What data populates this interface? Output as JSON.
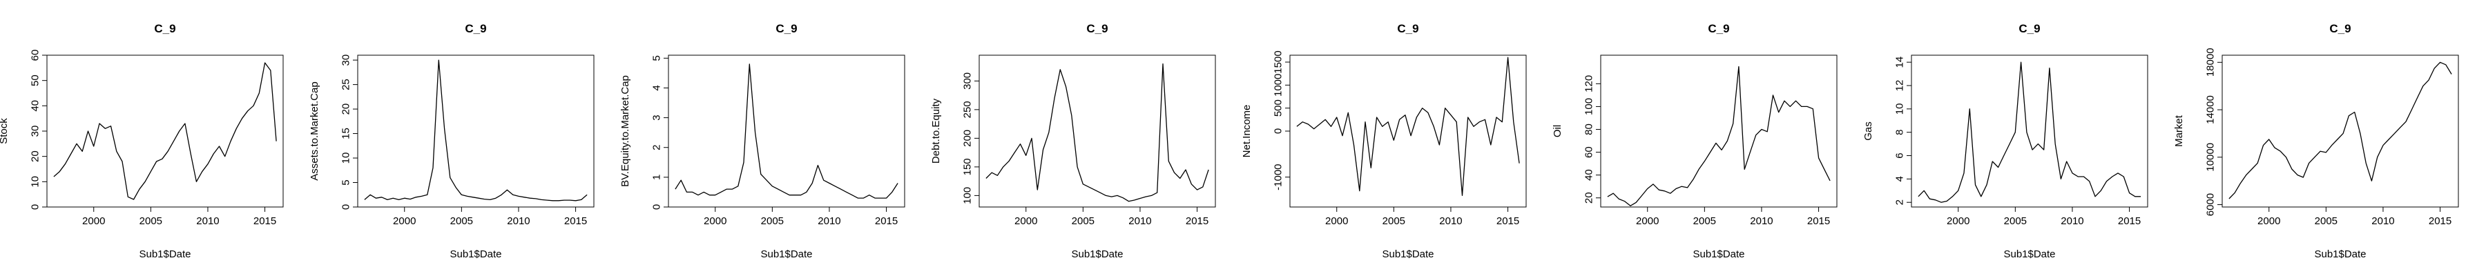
{
  "chart_data": [
    {
      "type": "line",
      "title": "C_9",
      "xlabel": "Sub1$Date",
      "ylabel": "Stock",
      "xlim": [
        1995.9,
        2016.6
      ],
      "ylim": [
        0,
        60
      ],
      "xticks": [
        2000,
        2005,
        2010,
        2015
      ],
      "yticks": [
        0,
        10,
        20,
        30,
        40,
        50,
        60
      ],
      "x": [
        1996.5,
        1997,
        1997.5,
        1998,
        1998.5,
        1999,
        1999.5,
        2000,
        2000.5,
        2001,
        2001.5,
        2002,
        2002.5,
        2003,
        2003.5,
        2004,
        2004.5,
        2005,
        2005.5,
        2006,
        2006.5,
        2007,
        2007.5,
        2008,
        2008.5,
        2009,
        2009.5,
        2010,
        2010.5,
        2011,
        2011.5,
        2012,
        2012.5,
        2013,
        2013.5,
        2014,
        2014.5,
        2015,
        2015.5,
        2016
      ],
      "values": [
        12,
        14,
        17,
        21,
        25,
        22,
        30,
        24,
        33,
        31,
        32,
        22,
        18,
        4,
        3,
        7,
        10,
        14,
        18,
        19,
        22,
        26,
        30,
        33,
        21,
        10,
        14,
        17,
        21,
        24,
        20,
        26,
        31,
        35,
        38,
        40,
        45,
        57,
        54,
        26
      ]
    },
    {
      "type": "line",
      "title": "C_9",
      "xlabel": "Sub1$Date",
      "ylabel": "Assets.to.Market.Cap",
      "xlim": [
        1995.9,
        2016.6
      ],
      "ylim": [
        0,
        31
      ],
      "xticks": [
        2000,
        2005,
        2010,
        2015
      ],
      "yticks": [
        0,
        5,
        10,
        15,
        20,
        25,
        30
      ],
      "x": [
        1996.5,
        1997,
        1997.5,
        1998,
        1998.5,
        1999,
        1999.5,
        2000,
        2000.5,
        2001,
        2001.5,
        2002,
        2002.5,
        2003,
        2003.5,
        2004,
        2004.5,
        2005,
        2005.5,
        2006,
        2006.5,
        2007,
        2007.5,
        2008,
        2008.5,
        2009,
        2009.5,
        2010,
        2010.5,
        2011,
        2011.5,
        2012,
        2012.5,
        2013,
        2013.5,
        2014,
        2014.5,
        2015,
        2015.5,
        2016
      ],
      "values": [
        1.5,
        2.5,
        1.8,
        2,
        1.5,
        1.8,
        1.5,
        1.8,
        1.6,
        2,
        2.2,
        2.5,
        8,
        30,
        16,
        6,
        4,
        2.5,
        2.2,
        2,
        1.8,
        1.6,
        1.5,
        1.8,
        2.5,
        3.5,
        2.5,
        2.2,
        2,
        1.8,
        1.7,
        1.5,
        1.4,
        1.3,
        1.3,
        1.4,
        1.4,
        1.3,
        1.5,
        2.5
      ]
    },
    {
      "type": "line",
      "title": "C_9",
      "xlabel": "Sub1$Date",
      "ylabel": "BV.Equity.to.Market.Cap",
      "xlim": [
        1995.9,
        2016.6
      ],
      "ylim": [
        0,
        5.1
      ],
      "xticks": [
        2000,
        2005,
        2010,
        2015
      ],
      "yticks": [
        0,
        1,
        2,
        3,
        4,
        5
      ],
      "x": [
        1996.5,
        1997,
        1997.5,
        1998,
        1998.5,
        1999,
        1999.5,
        2000,
        2000.5,
        2001,
        2001.5,
        2002,
        2002.5,
        2003,
        2003.5,
        2004,
        2004.5,
        2005,
        2005.5,
        2006,
        2006.5,
        2007,
        2007.5,
        2008,
        2008.5,
        2009,
        2009.5,
        2010,
        2010.5,
        2011,
        2011.5,
        2012,
        2012.5,
        2013,
        2013.5,
        2014,
        2014.5,
        2015,
        2015.5,
        2016
      ],
      "values": [
        0.6,
        0.9,
        0.5,
        0.5,
        0.4,
        0.5,
        0.4,
        0.4,
        0.5,
        0.6,
        0.6,
        0.7,
        1.5,
        4.8,
        2.5,
        1.1,
        0.9,
        0.7,
        0.6,
        0.5,
        0.4,
        0.4,
        0.4,
        0.5,
        0.8,
        1.4,
        0.9,
        0.8,
        0.7,
        0.6,
        0.5,
        0.4,
        0.3,
        0.3,
        0.4,
        0.3,
        0.3,
        0.3,
        0.5,
        0.8
      ]
    },
    {
      "type": "line",
      "title": "C_9",
      "xlabel": "Sub1$Date",
      "ylabel": "Debt.to.Equity",
      "xlim": [
        1995.9,
        2016.6
      ],
      "ylim": [
        80,
        345
      ],
      "xticks": [
        2000,
        2005,
        2010,
        2015
      ],
      "yticks": [
        100,
        150,
        200,
        250,
        300
      ],
      "x": [
        1996.5,
        1997,
        1997.5,
        1998,
        1998.5,
        1999,
        1999.5,
        2000,
        2000.5,
        2001,
        2001.5,
        2002,
        2002.5,
        2003,
        2003.5,
        2004,
        2004.5,
        2005,
        2005.5,
        2006,
        2006.5,
        2007,
        2007.5,
        2008,
        2008.5,
        2009,
        2009.5,
        2010,
        2010.5,
        2011,
        2011.5,
        2012,
        2012.5,
        2013,
        2013.5,
        2014,
        2014.5,
        2015,
        2015.5,
        2016
      ],
      "values": [
        130,
        140,
        135,
        150,
        160,
        175,
        190,
        170,
        200,
        110,
        180,
        210,
        270,
        320,
        290,
        240,
        150,
        120,
        115,
        110,
        105,
        100,
        98,
        100,
        96,
        90,
        92,
        95,
        98,
        100,
        105,
        330,
        160,
        140,
        130,
        145,
        120,
        110,
        115,
        145
      ]
    },
    {
      "type": "line",
      "title": "C_9",
      "xlabel": "Sub1$Date",
      "ylabel": "Net.Income",
      "xlim": [
        1995.9,
        2016.6
      ],
      "ylim": [
        -1650,
        1650
      ],
      "xticks": [
        2000,
        2005,
        2010,
        2015
      ],
      "yticks": [
        -1000,
        0,
        500,
        1000,
        1500
      ],
      "x": [
        1996.5,
        1997,
        1997.5,
        1998,
        1998.5,
        1999,
        1999.5,
        2000,
        2000.5,
        2001,
        2001.5,
        2002,
        2002.5,
        2003,
        2003.5,
        2004,
        2004.5,
        2005,
        2005.5,
        2006,
        2006.5,
        2007,
        2007.5,
        2008,
        2008.5,
        2009,
        2009.5,
        2010,
        2010.5,
        2011,
        2011.5,
        2012,
        2012.5,
        2013,
        2013.5,
        2014,
        2014.5,
        2015,
        2015.5,
        2016
      ],
      "values": [
        100,
        200,
        150,
        50,
        150,
        250,
        100,
        300,
        -100,
        400,
        -300,
        -1300,
        200,
        -800,
        300,
        100,
        200,
        -200,
        250,
        350,
        -100,
        300,
        500,
        400,
        100,
        -300,
        500,
        350,
        200,
        -1400,
        300,
        100,
        200,
        250,
        -300,
        300,
        200,
        1600,
        200,
        -700
      ]
    },
    {
      "type": "line",
      "title": "C_9",
      "xlabel": "Sub1$Date",
      "ylabel": "Oil",
      "xlim": [
        1995.9,
        2016.6
      ],
      "ylim": [
        12,
        145
      ],
      "xticks": [
        2000,
        2005,
        2010,
        2015
      ],
      "yticks": [
        20,
        40,
        60,
        80,
        100,
        120
      ],
      "x": [
        1996.5,
        1997,
        1997.5,
        1998,
        1998.5,
        1999,
        1999.5,
        2000,
        2000.5,
        2001,
        2001.5,
        2002,
        2002.5,
        2003,
        2003.5,
        2004,
        2004.5,
        2005,
        2005.5,
        2006,
        2006.5,
        2007,
        2007.5,
        2008,
        2008.5,
        2009,
        2009.5,
        2010,
        2010.5,
        2011,
        2011.5,
        2012,
        2012.5,
        2013,
        2013.5,
        2014,
        2014.5,
        2015,
        2015.5,
        2016
      ],
      "values": [
        21,
        24,
        19,
        17,
        13,
        16,
        22,
        28,
        32,
        27,
        26,
        24,
        28,
        30,
        29,
        36,
        45,
        52,
        60,
        68,
        62,
        70,
        85,
        135,
        45,
        60,
        75,
        80,
        78,
        110,
        95,
        105,
        100,
        105,
        100,
        100,
        98,
        55,
        45,
        35
      ]
    },
    {
      "type": "line",
      "title": "C_9",
      "xlabel": "Sub1$Date",
      "ylabel": "Gas",
      "xlim": [
        1995.9,
        2016.6
      ],
      "ylim": [
        1.6,
        14.6
      ],
      "xticks": [
        2000,
        2005,
        2010,
        2015
      ],
      "yticks": [
        2,
        4,
        6,
        8,
        10,
        12,
        14
      ],
      "x": [
        1996.5,
        1997,
        1997.5,
        1998,
        1998.5,
        1999,
        1999.5,
        2000,
        2000.5,
        2001,
        2001.5,
        2002,
        2002.5,
        2003,
        2003.5,
        2004,
        2004.5,
        2005,
        2005.5,
        2006,
        2006.5,
        2007,
        2007.5,
        2008,
        2008.5,
        2009,
        2009.5,
        2010,
        2010.5,
        2011,
        2011.5,
        2012,
        2012.5,
        2013,
        2013.5,
        2014,
        2014.5,
        2015,
        2015.5,
        2016
      ],
      "values": [
        2.5,
        3,
        2.3,
        2.2,
        2,
        2.1,
        2.5,
        3,
        4.5,
        10,
        3.5,
        2.5,
        3.5,
        5.5,
        5,
        6,
        7,
        8,
        14,
        8,
        6.5,
        7,
        6.5,
        13.5,
        7,
        4,
        5.5,
        4.5,
        4.2,
        4.2,
        3.8,
        2.5,
        3,
        3.8,
        4.2,
        4.5,
        4.2,
        2.8,
        2.5,
        2.5
      ]
    },
    {
      "type": "line",
      "title": "C_9",
      "xlabel": "Sub1$Date",
      "ylabel": "Market",
      "xlim": [
        1995.9,
        2016.6
      ],
      "ylim": [
        5800,
        18600
      ],
      "xticks": [
        2000,
        2005,
        2010,
        2015
      ],
      "yticks": [
        6000,
        10000,
        14000,
        18000
      ],
      "x": [
        1996.5,
        1997,
        1997.5,
        1998,
        1998.5,
        1999,
        1999.5,
        2000,
        2000.5,
        2001,
        2001.5,
        2002,
        2002.5,
        2003,
        2003.5,
        2004,
        2004.5,
        2005,
        2005.5,
        2006,
        2006.5,
        2007,
        2007.5,
        2008,
        2008.5,
        2009,
        2009.5,
        2010,
        2010.5,
        2011,
        2011.5,
        2012,
        2012.5,
        2013,
        2013.5,
        2014,
        2014.5,
        2015,
        2015.5,
        2016
      ],
      "values": [
        6500,
        7000,
        7800,
        8500,
        9000,
        9500,
        11000,
        11500,
        10800,
        10500,
        10000,
        9000,
        8500,
        8300,
        9500,
        10000,
        10500,
        10400,
        11000,
        11500,
        12000,
        13500,
        13800,
        12000,
        9500,
        8000,
        10000,
        11000,
        11500,
        12000,
        12500,
        13000,
        14000,
        15000,
        16000,
        16500,
        17500,
        18000,
        17800,
        17000
      ]
    }
  ]
}
